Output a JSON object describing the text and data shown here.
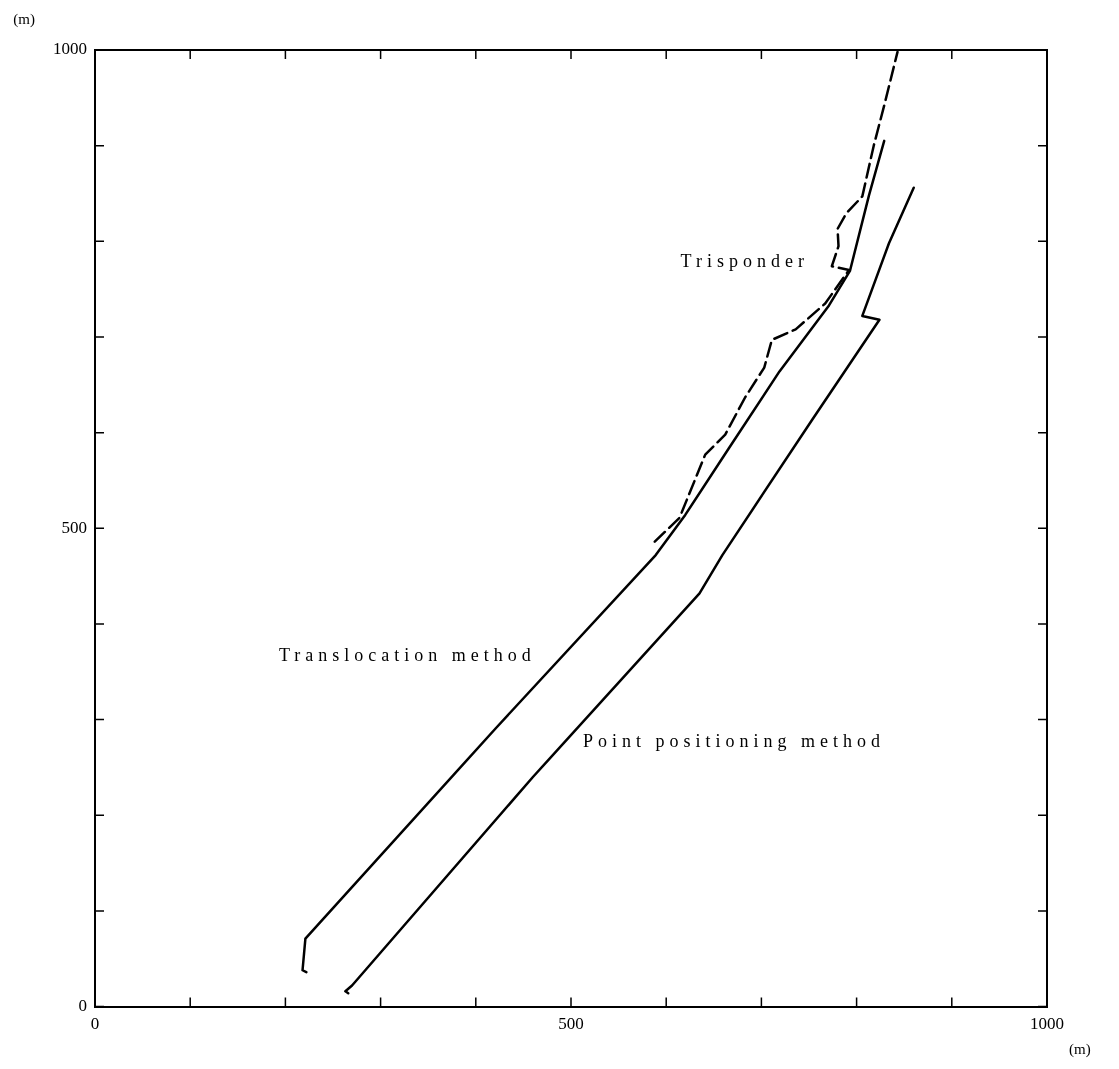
{
  "chart_data": {
    "type": "line",
    "xlabel": "(m)",
    "ylabel": "(m)",
    "xlim": [
      0,
      1000
    ],
    "ylim": [
      0,
      1000
    ],
    "xticks": [
      0,
      {
        "value": 100,
        "label": null
      },
      {
        "value": 200,
        "label": null
      },
      {
        "value": 300,
        "label": null
      },
      {
        "value": 400,
        "label": null
      },
      500,
      {
        "value": 600,
        "label": null
      },
      {
        "value": 700,
        "label": null
      },
      {
        "value": 800,
        "label": null
      },
      {
        "value": 900,
        "label": null
      },
      1000
    ],
    "yticks": [
      0,
      {
        "value": 100,
        "label": null
      },
      {
        "value": 200,
        "label": null
      },
      {
        "value": 300,
        "label": null
      },
      {
        "value": 400,
        "label": null
      },
      500,
      {
        "value": 600,
        "label": null
      },
      {
        "value": 700,
        "label": null
      },
      {
        "value": 800,
        "label": null
      },
      {
        "value": 900,
        "label": null
      },
      1000
    ],
    "grid": false,
    "legend": false,
    "marker": "none",
    "series": [
      {
        "name": "Trisponder",
        "color": "#000000",
        "line_style": "dashed",
        "x": [
          588,
          614,
          641,
          662,
          683,
          703,
          711,
          736,
          767,
          792,
          774,
          781,
          780,
          789,
          806,
          818,
          829,
          843
        ],
        "values": [
          486,
          511,
          577,
          598,
          637,
          668,
          697,
          708,
          735,
          770,
          774,
          795,
          813,
          829,
          847,
          900,
          942,
          998
        ]
      },
      {
        "name": "Translocation method",
        "color": "#000000",
        "line_style": "solid",
        "x": [
          222,
          218,
          221,
          421,
          589,
          620,
          666,
          719,
          771,
          793,
          813,
          829
        ],
        "values": [
          36,
          38,
          71,
          291,
          472,
          514,
          584,
          664,
          733,
          769,
          848,
          905
        ]
      },
      {
        "name": "Point positioning method",
        "color": "#000000",
        "line_style": "solid",
        "x": [
          266,
          263,
          270,
          460,
          635,
          659,
          753,
          824,
          806,
          834,
          860
        ],
        "values": [
          14,
          16,
          22,
          240,
          432,
          472,
          613,
          718,
          722,
          798,
          856
        ]
      }
    ]
  }
}
